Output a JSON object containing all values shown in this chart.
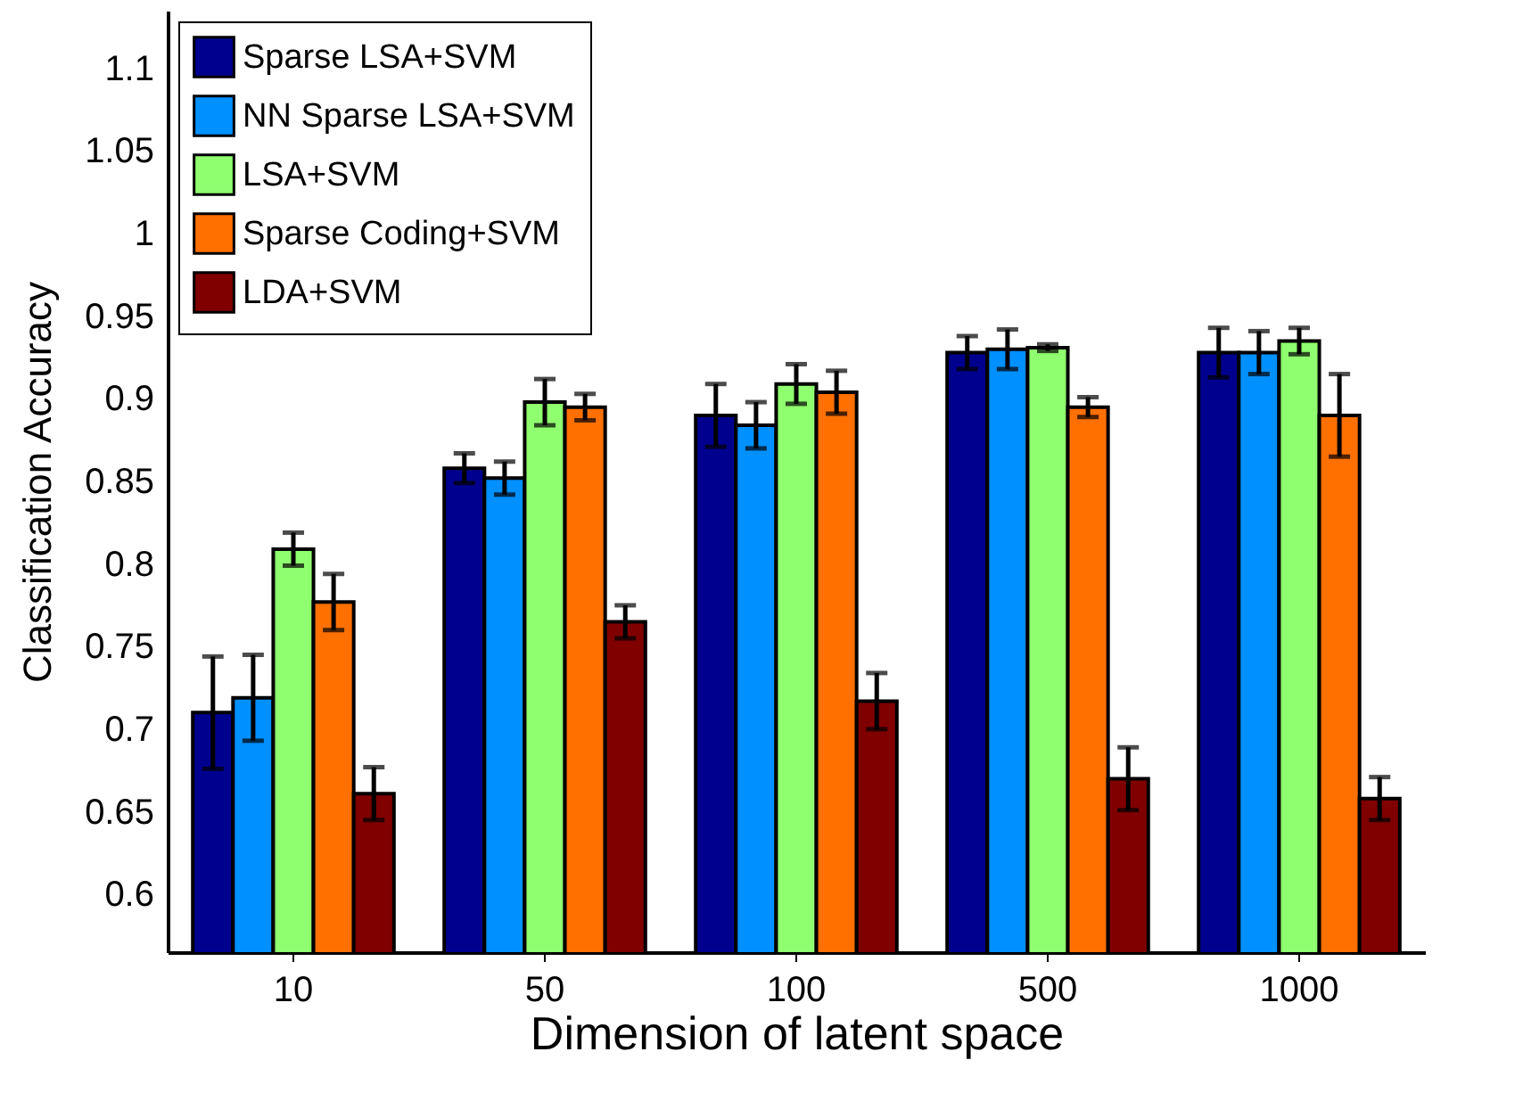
{
  "chart_data": {
    "type": "bar",
    "xlabel": "Dimension of latent space",
    "ylabel": "Classification Accuracy",
    "categories": [
      "10",
      "50",
      "100",
      "500",
      "1000"
    ],
    "series": [
      {
        "name": "Sparse LSA+SVM",
        "color": "#00008f",
        "values": [
          0.71,
          0.858,
          0.89,
          0.928,
          0.928
        ],
        "errors": [
          0.034,
          0.009,
          0.019,
          0.01,
          0.015
        ]
      },
      {
        "name": "NN Sparse LSA+SVM",
        "color": "#0090ff",
        "values": [
          0.719,
          0.852,
          0.884,
          0.93,
          0.928
        ],
        "errors": [
          0.026,
          0.01,
          0.014,
          0.012,
          0.013
        ]
      },
      {
        "name": "LSA+SVM",
        "color": "#8fff6f",
        "values": [
          0.809,
          0.898,
          0.909,
          0.931,
          0.935
        ],
        "errors": [
          0.01,
          0.014,
          0.012,
          0.002,
          0.008
        ]
      },
      {
        "name": "Sparse Coding+SVM",
        "color": "#ff7000",
        "values": [
          0.777,
          0.895,
          0.904,
          0.895,
          0.89
        ],
        "errors": [
          0.017,
          0.008,
          0.013,
          0.006,
          0.025
        ]
      },
      {
        "name": "LDA+SVM",
        "color": "#800000",
        "values": [
          0.661,
          0.765,
          0.717,
          0.67,
          0.658
        ],
        "errors": [
          0.016,
          0.01,
          0.017,
          0.019,
          0.013
        ]
      }
    ],
    "ylim": [
      0.565,
      1.135
    ],
    "yticks": [
      0.6,
      0.65,
      0.7,
      0.75,
      0.8,
      0.85,
      0.9,
      0.95,
      1,
      1.05,
      1.1
    ],
    "legend": "top left",
    "grid": false
  }
}
